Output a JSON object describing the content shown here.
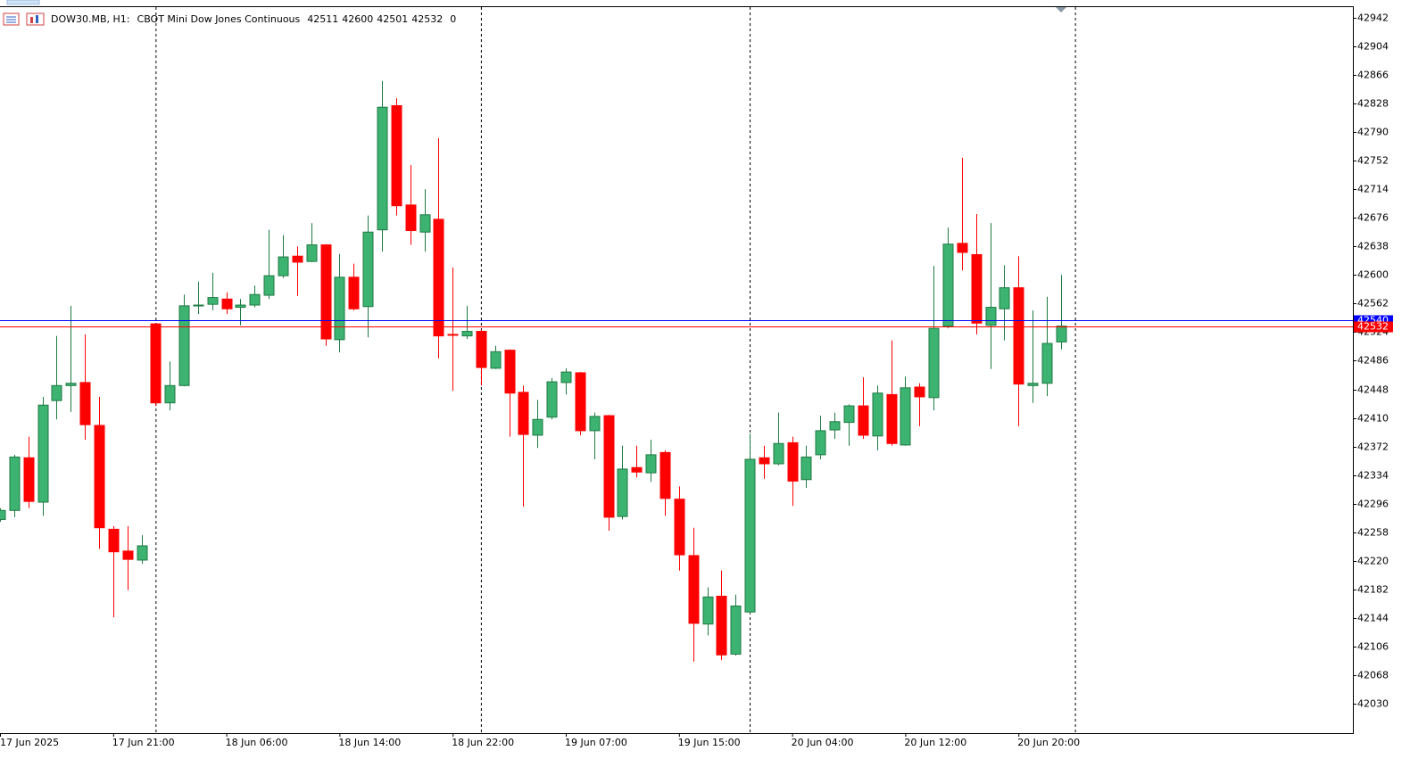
{
  "chart_data": {
    "type": "candlestick",
    "title": "DOW30.MB, H1:",
    "subtitle": "CBOT Mini Dow Jones Continuous",
    "spread": 0,
    "categories": [
      "17 Jun 2025",
      null,
      null,
      null,
      null,
      null,
      null,
      null,
      "17 Jun 21:00",
      null,
      null,
      null,
      null,
      null,
      null,
      null,
      "18 Jun 06:00",
      null,
      null,
      null,
      null,
      null,
      null,
      null,
      "18 Jun 14:00",
      null,
      null,
      null,
      null,
      null,
      null,
      null,
      "18 Jun 22:00",
      null,
      null,
      null,
      null,
      null,
      null,
      null,
      "19 Jun 07:00",
      null,
      null,
      null,
      null,
      null,
      null,
      null,
      "19 Jun 15:00",
      null,
      null,
      null,
      null,
      null,
      null,
      null,
      "20 Jun 04:00",
      null,
      null,
      null,
      null,
      null,
      null,
      null,
      "20 Jun 12:00",
      null,
      null,
      null,
      null,
      null,
      null,
      null,
      "20 Jun 20:00",
      null,
      null,
      null
    ],
    "open": [
      42275,
      42287,
      42357,
      42298,
      42433,
      42453,
      42457,
      42400,
      42262,
      42233,
      42221,
      42535,
      42430,
      42453,
      42559,
      42561,
      42568,
      42557,
      42560,
      42573,
      42599,
      42625,
      42618,
      42640,
      42514,
      42597,
      42558,
      42660,
      42825,
      42693,
      42657,
      42674,
      42521,
      42519,
      42525,
      42476,
      42500,
      42444,
      42387,
      42411,
      42457,
      42470,
      42393,
      42413,
      42279,
      42344,
      42337,
      42364,
      42302,
      42227,
      42136,
      42173,
      42096,
      42152,
      42357,
      42349,
      42377,
      42328,
      42361,
      42394,
      42404,
      42426,
      42386,
      42441,
      42374,
      42451,
      42437,
      42532,
      42642,
      42627,
      42533,
      42555,
      42583,
      42453,
      42456,
      42511
    ],
    "high": [
      42290,
      42361,
      42385,
      42438,
      42519,
      42559,
      42521,
      42438,
      42266,
      42266,
      42254,
      42536,
      42485,
      42574,
      42591,
      42603,
      42577,
      42568,
      42586,
      42660,
      42653,
      42638,
      42669,
      42641,
      42628,
      42615,
      42679,
      42858,
      42835,
      42746,
      42714,
      42782,
      42610,
      42559,
      42527,
      42506,
      42501,
      42453,
      42434,
      42463,
      42476,
      42471,
      42417,
      42414,
      42373,
      42373,
      42381,
      42367,
      42319,
      42264,
      42185,
      42207,
      42175,
      42389,
      42373,
      42417,
      42385,
      42373,
      42413,
      42417,
      42428,
      42464,
      42453,
      42513,
      42465,
      42456,
      42612,
      42663,
      42756,
      42681,
      42669,
      42613,
      42625,
      42553,
      42571,
      42600
    ],
    "low": [
      42272,
      42278,
      42290,
      42280,
      42408,
      42418,
      42381,
      42236,
      42145,
      42181,
      42216,
      42426,
      42420,
      42452,
      42548,
      42553,
      42548,
      42533,
      42557,
      42568,
      42596,
      42572,
      42617,
      42506,
      42497,
      42553,
      42517,
      42631,
      42679,
      42640,
      42631,
      42489,
      42446,
      42515,
      42453,
      42475,
      42385,
      42292,
      42370,
      42408,
      42441,
      42387,
      42355,
      42260,
      42275,
      42331,
      42325,
      42280,
      42207,
      42086,
      42121,
      42088,
      42094,
      42150,
      42329,
      42347,
      42293,
      42317,
      42355,
      42382,
      42373,
      42382,
      42367,
      42373,
      42373,
      42399,
      42420,
      42529,
      42606,
      42521,
      42475,
      42513,
      42399,
      42430,
      42439,
      42501
    ],
    "close": [
      42287,
      42358,
      42299,
      42427,
      42453,
      42456,
      42401,
      42264,
      42232,
      42222,
      42240,
      42430,
      42453,
      42559,
      42560,
      42570,
      42555,
      42560,
      42574,
      42599,
      42624,
      42617,
      42640,
      42515,
      42597,
      42555,
      42657,
      42823,
      42692,
      42659,
      42680,
      42519,
      42520,
      42525,
      42477,
      42498,
      42443,
      42388,
      42408,
      42458,
      42471,
      42393,
      42412,
      42278,
      42342,
      42338,
      42361,
      42303,
      42228,
      42137,
      42172,
      42095,
      42160,
      42355,
      42349,
      42376,
      42326,
      42358,
      42393,
      42405,
      42426,
      42387,
      42443,
      42376,
      42450,
      42438,
      42529,
      42641,
      42630,
      42536,
      42557,
      42583,
      42455,
      42456,
      42509,
      42532
    ],
    "up_color": "#3cb371",
    "up_border": "#1f7a43",
    "down_color": "#ff0000",
    "ylim": [
      41991,
      42956
    ],
    "yticks": [
      42942,
      42904,
      42866,
      42828,
      42790,
      42752,
      42714,
      42676,
      42638,
      42600,
      42562,
      42524,
      42486,
      42448,
      42410,
      42372,
      42334,
      42296,
      42258,
      42220,
      42182,
      42144,
      42106,
      42068,
      42030
    ],
    "grid": false,
    "price_lines": [
      {
        "value": 42540,
        "color": "#0000ff"
      },
      {
        "value": 42532,
        "color": "#ff0000"
      }
    ]
  }
}
